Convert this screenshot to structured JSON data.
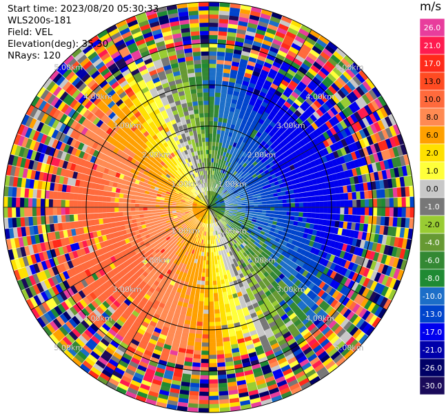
{
  "header": {
    "start_time": "Start time: 2023/08/20 05:30:33",
    "instrument": "WLS200s-181",
    "field": "Field: VEL",
    "elevation": "Elevation(deg): 35.30",
    "nrays": "NRays: 120"
  },
  "colorbar": {
    "unit": "m/s",
    "ticks": [
      "26.0",
      "21.0",
      "17.0",
      "13.0",
      "10.0",
      "8.0",
      "6.0",
      "2.0",
      "1.0",
      "0.0",
      "-1.0",
      "-2.0",
      "-4.0",
      "-6.0",
      "-8.0",
      "-10.0",
      "-13.0",
      "-17.0",
      "-21.0",
      "-26.0",
      "-30.0"
    ],
    "colors": [
      "#e83d9c",
      "#ff1b4f",
      "#ff2a1a",
      "#ff4b22",
      "#ff6a3c",
      "#ff8a52",
      "#ffa000",
      "#ffe000",
      "#ffff3a",
      "#c8c8c8",
      "#777777",
      "#99cc33",
      "#669933",
      "#338833",
      "#1f8a33",
      "#1c6ec8",
      "#0044cc",
      "#0000ee",
      "#0000aa",
      "#000066",
      "#1a0a5a"
    ]
  },
  "chart_data": {
    "type": "heatmap",
    "title": "",
    "field": "VEL",
    "unit": "m/s",
    "elevation_deg": 35.3,
    "n_rays": 120,
    "range_ring_labels": [
      "1.00km",
      "2.00km",
      "3.00km",
      "4.00km",
      "5.00km"
    ],
    "range_rings_km": [
      1,
      2,
      3,
      4,
      5
    ],
    "value_range": [
      -30,
      26
    ],
    "pattern": "near-range wind field: positive velocities (orange/red) to the west and north-west, negative velocities (blue) to the east and south-east; outer ranges beyond ~4 km are noise"
  }
}
